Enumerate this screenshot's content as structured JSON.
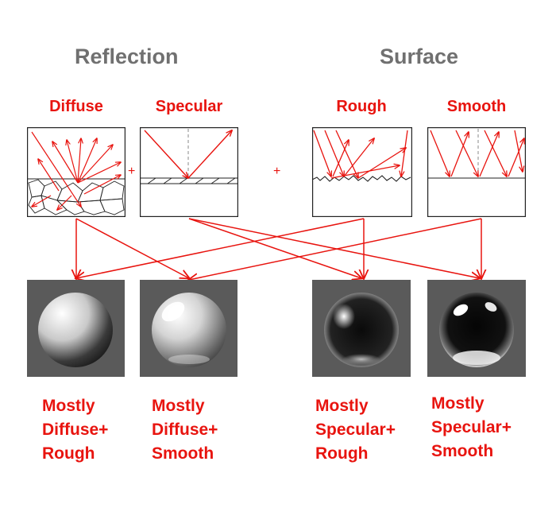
{
  "titles": {
    "reflection": "Reflection",
    "surface": "Surface"
  },
  "columns": {
    "diffuse": "Diffuse",
    "specular": "Specular",
    "rough": "Rough",
    "smooth": "Smooth"
  },
  "plus_signs": [
    "+",
    "+"
  ],
  "results": [
    {
      "line1": "Mostly",
      "line2": "Diffuse+",
      "line3": "Rough"
    },
    {
      "line1": "Mostly",
      "line2": "Diffuse+",
      "line3": "Smooth"
    },
    {
      "line1": "Mostly",
      "line2": "Specular+",
      "line3": "Rough"
    },
    {
      "line1": "Mostly",
      "line2": "Specular+",
      "line3": "Smooth"
    }
  ],
  "colors": {
    "accent": "#e8140f",
    "title_gray": "#707070",
    "sphere_bg": "#5a5a5a"
  }
}
